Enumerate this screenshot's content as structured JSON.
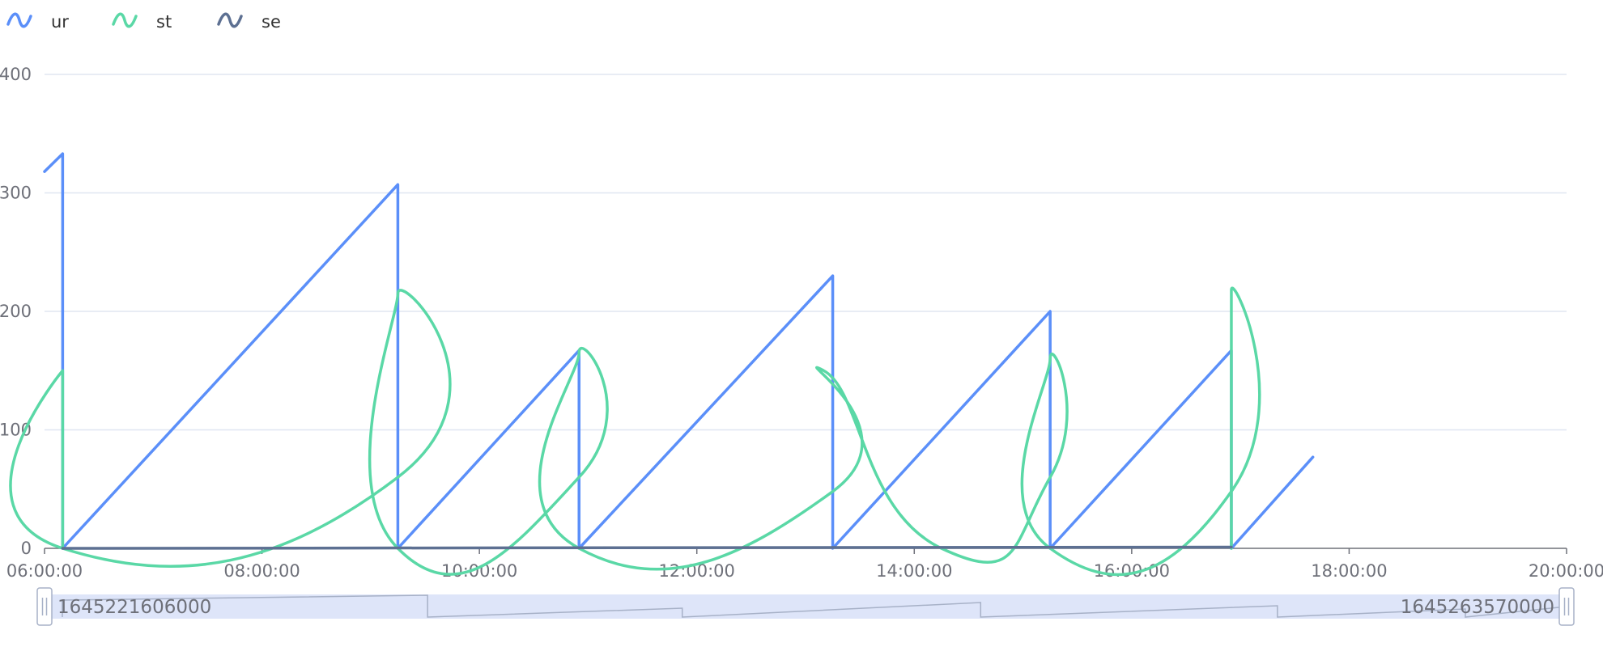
{
  "chart_data": {
    "type": "line",
    "title": "",
    "xlabel": "",
    "ylabel": "",
    "x_axis": {
      "type": "time",
      "min": "06:00:00",
      "max": "20:00:00",
      "tick_labels": [
        "06:00:00",
        "08:00:00",
        "10:00:00",
        "12:00:00",
        "14:00:00",
        "16:00:00",
        "18:00:00",
        "20:00:00"
      ]
    },
    "y_axis": {
      "min": 0,
      "max": 400,
      "tick_labels": [
        "0",
        "100",
        "200",
        "300",
        "400"
      ]
    },
    "grid": "horizontal",
    "legend": {
      "position": "top-left",
      "items": [
        "ur",
        "st",
        "se"
      ]
    },
    "series": [
      {
        "name": "ur",
        "color": "#5b8ff9",
        "smooth": false,
        "points": [
          [
            "06:00:00",
            318
          ],
          [
            "06:10:00",
            333
          ],
          [
            "06:10:00",
            0
          ],
          [
            "09:15:00",
            307
          ],
          [
            "09:15:00",
            0
          ],
          [
            "10:55:00",
            167
          ],
          [
            "10:55:00",
            0
          ],
          [
            "13:15:00",
            230
          ],
          [
            "13:15:00",
            0
          ],
          [
            "15:15:00",
            200
          ],
          [
            "15:15:00",
            0
          ],
          [
            "16:55:00",
            167
          ],
          [
            "16:55:00",
            0
          ],
          [
            "17:40:00",
            77
          ]
        ]
      },
      {
        "name": "st",
        "color": "#5ad8a6",
        "smooth": true,
        "points": [
          [
            "06:10:00",
            0
          ],
          [
            "06:10:00",
            150
          ],
          [
            "06:10:00",
            0
          ],
          [
            "09:15:00",
            60
          ],
          [
            "09:15:00",
            215
          ],
          [
            "09:15:00",
            0
          ],
          [
            "10:55:00",
            60
          ],
          [
            "10:55:00",
            165
          ],
          [
            "10:55:00",
            0
          ],
          [
            "13:15:00",
            48
          ],
          [
            "13:10:00",
            150
          ],
          [
            "14:15:00",
            0
          ],
          [
            "15:15:00",
            60
          ],
          [
            "15:15:00",
            160
          ],
          [
            "15:15:00",
            0
          ],
          [
            "16:55:00",
            48
          ],
          [
            "16:55:00",
            218
          ],
          [
            "16:55:00",
            0
          ]
        ]
      },
      {
        "name": "se",
        "color": "#5d7092",
        "smooth": false,
        "points": [
          [
            "06:10:00",
            0
          ],
          [
            "16:55:00",
            1
          ]
        ]
      }
    ],
    "data_zoom": {
      "start_label": "1645221606000",
      "end_label": "1645263570000"
    }
  }
}
